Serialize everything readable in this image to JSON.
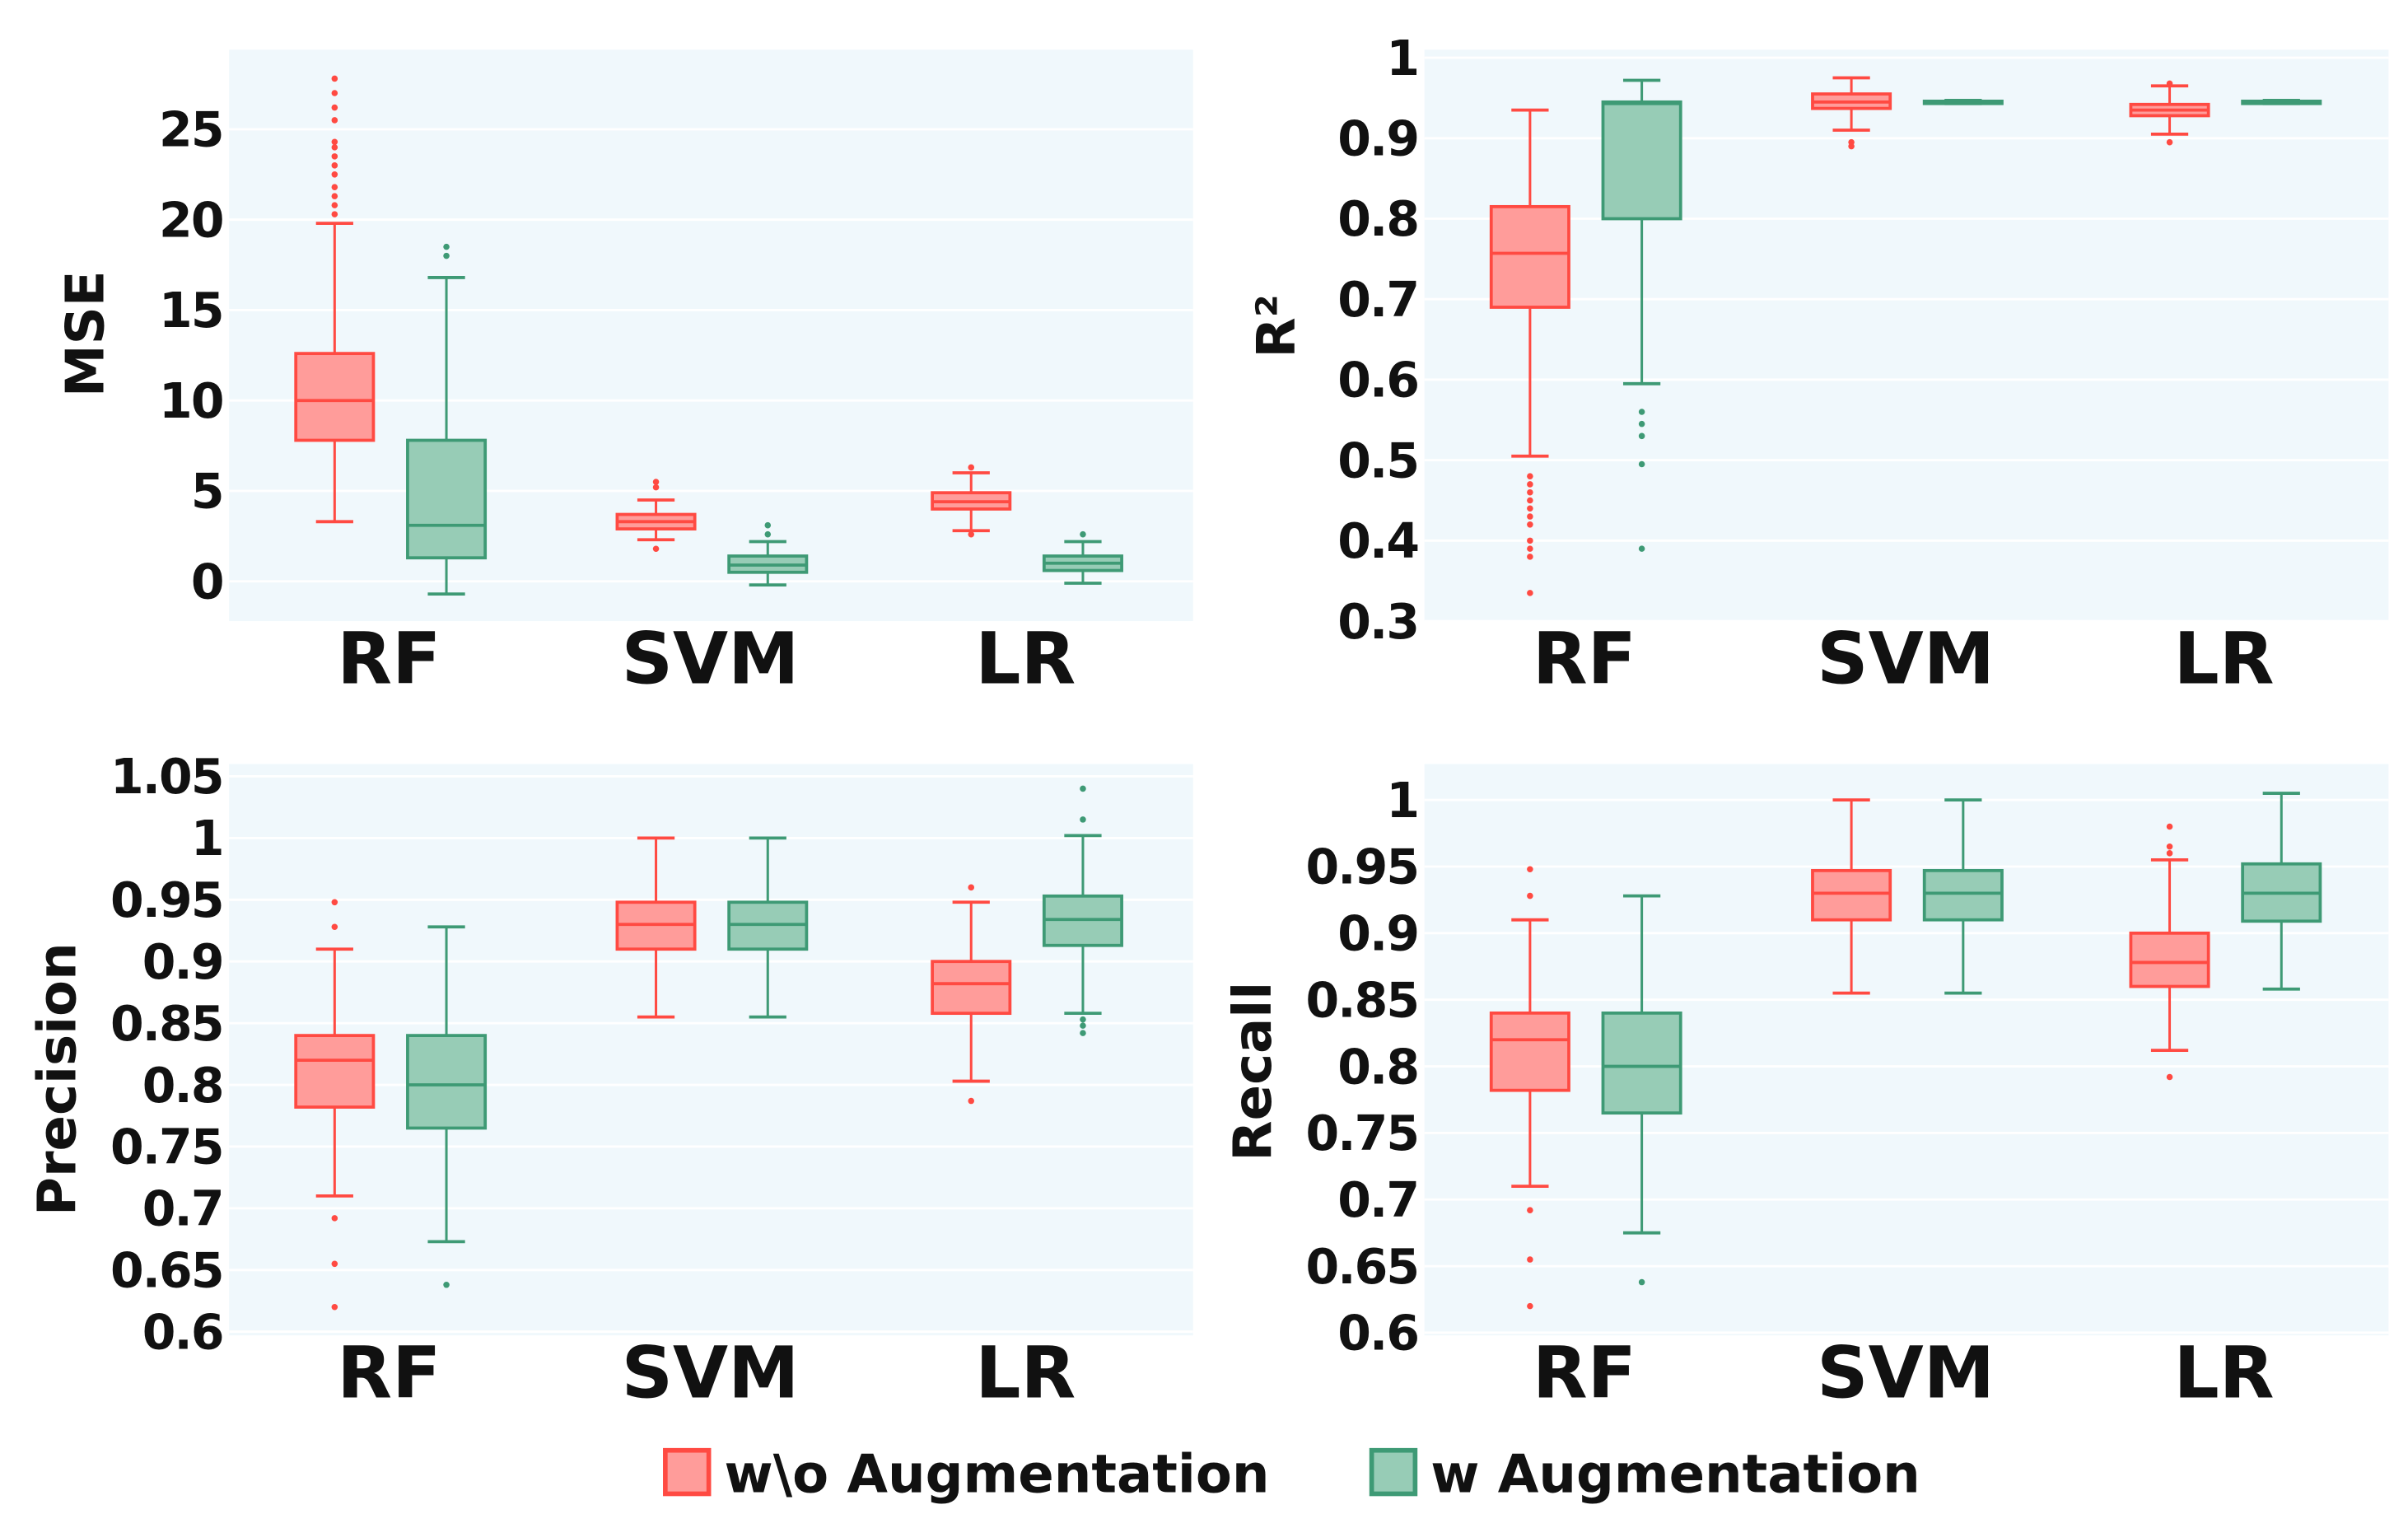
{
  "legend": {
    "without": "w\\o Augmentation",
    "with": "w Augmentation"
  },
  "colors": {
    "without_stroke": "#ff4a42",
    "without_fill": "#ff9c9a",
    "with_stroke": "#3e9a75",
    "with_fill": "#97ccb6",
    "plot_bg": "#f0f8fc"
  },
  "chart_data": [
    {
      "type": "box",
      "ylabel": "MSE",
      "categories": [
        "RF",
        "SVM",
        "LR"
      ],
      "yticks": [
        0,
        5,
        10,
        15,
        20,
        25
      ],
      "ytick_labels": [
        "0",
        "5",
        "10",
        "15",
        "20",
        "25"
      ],
      "ylim": [
        -2.2,
        29.4
      ],
      "series": [
        {
          "name": "w\\o Augmentation",
          "boxes": [
            {
              "whislo": 3.3,
              "q1": 7.8,
              "med": 10.0,
              "q3": 12.6,
              "whishi": 19.8,
              "fliers": [
                20.3,
                20.8,
                21.3,
                21.8,
                22.5,
                23.0,
                23.5,
                24.0,
                24.3,
                25.5,
                26.2,
                27.0,
                27.8
              ]
            },
            {
              "whislo": 2.3,
              "q1": 2.9,
              "med": 3.3,
              "q3": 3.7,
              "whishi": 4.5,
              "fliers": [
                1.8,
                5.2,
                5.5
              ]
            },
            {
              "whislo": 2.8,
              "q1": 4.0,
              "med": 4.4,
              "q3": 4.9,
              "whishi": 6.0,
              "fliers": [
                2.6,
                6.3
              ]
            }
          ]
        },
        {
          "name": "w Augmentation",
          "boxes": [
            {
              "whislo": -0.7,
              "q1": 1.3,
              "med": 3.1,
              "q3": 7.8,
              "whishi": 16.8,
              "fliers": [
                18.0,
                18.5
              ]
            },
            {
              "whislo": -0.2,
              "q1": 0.5,
              "med": 0.9,
              "q3": 1.4,
              "whishi": 2.2,
              "fliers": [
                2.6,
                3.1
              ]
            },
            {
              "whislo": -0.1,
              "q1": 0.6,
              "med": 1.0,
              "q3": 1.4,
              "whishi": 2.2,
              "fliers": [
                2.6
              ]
            }
          ]
        }
      ]
    },
    {
      "type": "box",
      "ylabel": "R²",
      "categories": [
        "RF",
        "SVM",
        "LR"
      ],
      "yticks": [
        0.3,
        0.4,
        0.5,
        0.6,
        0.7,
        0.8,
        0.9,
        1.0
      ],
      "ytick_labels": [
        "0.3",
        "0.4",
        "0.5",
        "0.6",
        "0.7",
        "0.8",
        "0.9",
        "1"
      ],
      "ylim": [
        0.3,
        1.01
      ],
      "series": [
        {
          "name": "w\\o Augmentation",
          "boxes": [
            {
              "whislo": 0.505,
              "q1": 0.69,
              "med": 0.757,
              "q3": 0.815,
              "whishi": 0.935,
              "fliers": [
                0.48,
                0.47,
                0.46,
                0.45,
                0.44,
                0.43,
                0.42,
                0.4,
                0.39,
                0.38,
                0.335
              ]
            },
            {
              "whislo": 0.91,
              "q1": 0.937,
              "med": 0.945,
              "q3": 0.955,
              "whishi": 0.975,
              "fliers": [
                0.895,
                0.89
              ]
            },
            {
              "whislo": 0.905,
              "q1": 0.928,
              "med": 0.935,
              "q3": 0.942,
              "whishi": 0.965,
              "fliers": [
                0.895,
                0.968
              ]
            }
          ]
        },
        {
          "name": "w Augmentation",
          "boxes": [
            {
              "whislo": 0.595,
              "q1": 0.8,
              "med": 0.943,
              "q3": 0.945,
              "whishi": 0.972,
              "fliers": [
                0.56,
                0.545,
                0.53,
                0.495,
                0.39
              ]
            },
            {
              "whislo": 0.943,
              "q1": 0.944,
              "med": 0.945,
              "q3": 0.946,
              "whishi": 0.947,
              "fliers": []
            },
            {
              "whislo": 0.943,
              "q1": 0.944,
              "med": 0.945,
              "q3": 0.946,
              "whishi": 0.947,
              "fliers": []
            }
          ]
        }
      ]
    },
    {
      "type": "box",
      "ylabel": "Precision",
      "categories": [
        "RF",
        "SVM",
        "LR"
      ],
      "yticks": [
        0.6,
        0.65,
        0.7,
        0.75,
        0.8,
        0.85,
        0.9,
        0.95,
        1.0,
        1.05
      ],
      "ytick_labels": [
        "0.6",
        "0.65",
        "0.7",
        "0.75",
        "0.8",
        "0.85",
        "0.9",
        "0.95",
        "1",
        "1.05"
      ],
      "ylim": [
        0.597,
        1.06
      ],
      "series": [
        {
          "name": "w\\o Augmentation",
          "boxes": [
            {
              "whislo": 0.71,
              "q1": 0.782,
              "med": 0.82,
              "q3": 0.84,
              "whishi": 0.91,
              "fliers": [
                0.948,
                0.928,
                0.692,
                0.655,
                0.62
              ]
            },
            {
              "whislo": 0.855,
              "q1": 0.91,
              "med": 0.93,
              "q3": 0.948,
              "whishi": 1.0,
              "fliers": []
            },
            {
              "whislo": 0.803,
              "q1": 0.858,
              "med": 0.882,
              "q3": 0.9,
              "whishi": 0.948,
              "fliers": [
                0.96,
                0.787
              ]
            }
          ]
        },
        {
          "name": "w Augmentation",
          "boxes": [
            {
              "whislo": 0.673,
              "q1": 0.765,
              "med": 0.8,
              "q3": 0.84,
              "whishi": 0.928,
              "fliers": [
                0.638
              ]
            },
            {
              "whislo": 0.855,
              "q1": 0.91,
              "med": 0.93,
              "q3": 0.948,
              "whishi": 1.0,
              "fliers": []
            },
            {
              "whislo": 0.858,
              "q1": 0.913,
              "med": 0.934,
              "q3": 0.953,
              "whishi": 1.002,
              "fliers": [
                1.04,
                1.015,
                0.853,
                0.848,
                0.842
              ]
            }
          ]
        }
      ]
    },
    {
      "type": "box",
      "ylabel": "Recall",
      "categories": [
        "RF",
        "SVM",
        "LR"
      ],
      "yticks": [
        0.6,
        0.65,
        0.7,
        0.75,
        0.8,
        0.85,
        0.9,
        0.95,
        1.0
      ],
      "ytick_labels": [
        "0.6",
        "0.65",
        "0.7",
        "0.75",
        "0.8",
        "0.85",
        "0.9",
        "0.95",
        "1"
      ],
      "ylim": [
        0.598,
        1.027
      ],
      "series": [
        {
          "name": "w\\o Augmentation",
          "boxes": [
            {
              "whislo": 0.71,
              "q1": 0.782,
              "med": 0.82,
              "q3": 0.84,
              "whishi": 0.91,
              "fliers": [
                0.948,
                0.928,
                0.692,
                0.655,
                0.62
              ]
            },
            {
              "whislo": 0.855,
              "q1": 0.91,
              "med": 0.93,
              "q3": 0.947,
              "whishi": 1.0,
              "fliers": []
            },
            {
              "whislo": 0.812,
              "q1": 0.86,
              "med": 0.878,
              "q3": 0.9,
              "whishi": 0.955,
              "fliers": [
                0.98,
                0.965,
                0.96,
                0.792
              ]
            }
          ]
        },
        {
          "name": "w Augmentation",
          "boxes": [
            {
              "whislo": 0.675,
              "q1": 0.765,
              "med": 0.8,
              "q3": 0.84,
              "whishi": 0.928,
              "fliers": [
                0.638
              ]
            },
            {
              "whislo": 0.855,
              "q1": 0.91,
              "med": 0.93,
              "q3": 0.947,
              "whishi": 1.0,
              "fliers": []
            },
            {
              "whislo": 0.858,
              "q1": 0.909,
              "med": 0.93,
              "q3": 0.952,
              "whishi": 1.005,
              "fliers": []
            }
          ]
        }
      ]
    }
  ]
}
